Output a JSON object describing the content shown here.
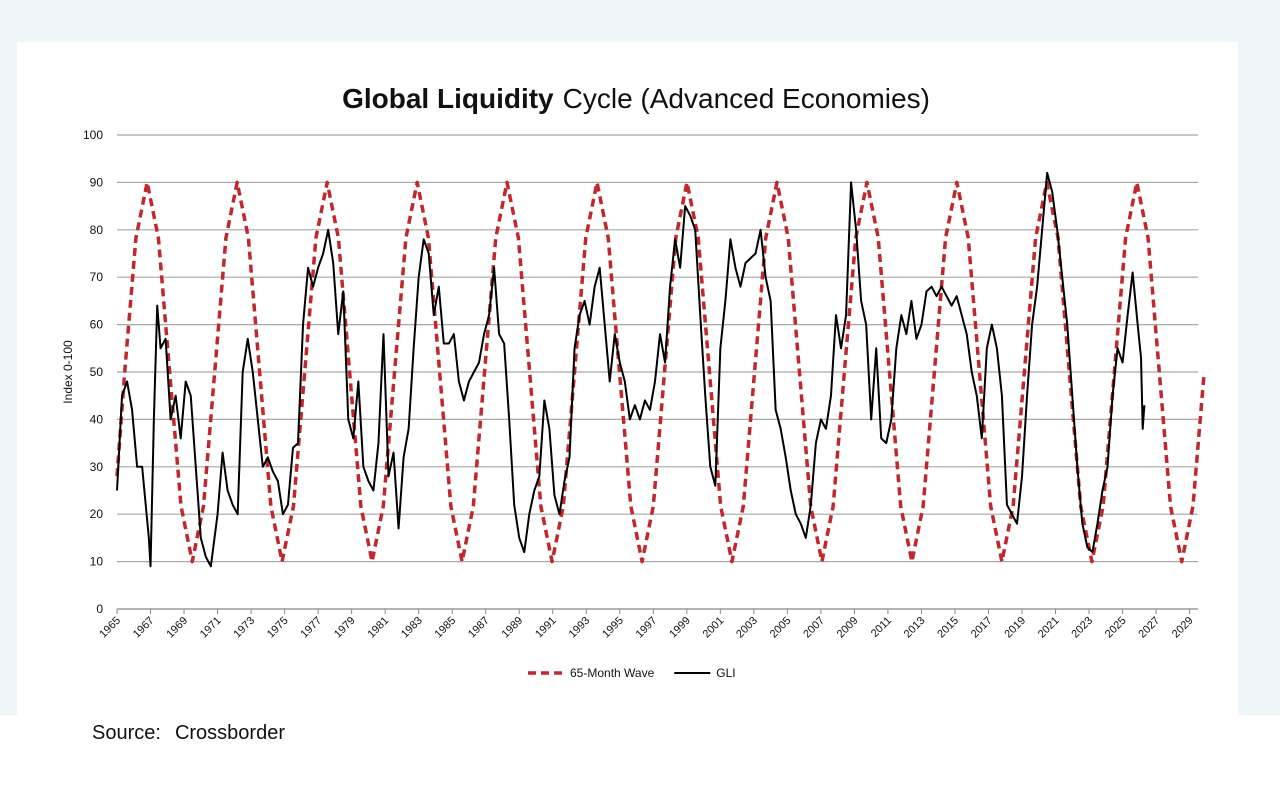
{
  "chart_data": {
    "type": "line",
    "title_bold": "Global Liquidity",
    "title_rest": "Cycle (Advanced Economies)",
    "y_label": "Index 0-100",
    "source_label": "Source:",
    "source": "Crossborder",
    "xlim": [
      1965,
      2029.5
    ],
    "xticks": [
      1965,
      1967,
      1969,
      1971,
      1973,
      1975,
      1977,
      1979,
      1981,
      1983,
      1985,
      1987,
      1989,
      1991,
      1993,
      1995,
      1997,
      1999,
      2001,
      2003,
      2005,
      2007,
      2009,
      2011,
      2013,
      2015,
      2017,
      2019,
      2021,
      2023,
      2025,
      2027,
      2029
    ],
    "ylim": [
      0,
      100
    ],
    "yticks": [
      0,
      10,
      20,
      30,
      40,
      50,
      60,
      70,
      80,
      90,
      100
    ],
    "grid": true,
    "legend": "bottom",
    "series": [
      {
        "name": "65-Month Wave",
        "color": "#c0282d",
        "dashed": true,
        "x": [
          1965.0,
          1965.46,
          1966.13,
          1966.8,
          1967.47,
          1968.14,
          1968.82,
          1969.49,
          1970.16,
          1970.83,
          1971.5,
          1972.17,
          1972.84,
          1973.51,
          1974.18,
          1974.85,
          1975.53,
          1976.2,
          1976.87,
          1977.54,
          1978.21,
          1978.88,
          1979.55,
          1980.22,
          1980.89,
          1981.56,
          1982.24,
          1982.91,
          1983.58,
          1984.25,
          1984.92,
          1985.59,
          1986.26,
          1986.93,
          1987.6,
          1988.27,
          1988.95,
          1989.62,
          1990.29,
          1990.96,
          1991.63,
          1992.3,
          1992.97,
          1993.64,
          1994.31,
          1994.98,
          1995.66,
          1996.33,
          1997.0,
          1997.67,
          1998.34,
          1999.01,
          1999.68,
          2000.35,
          2001.02,
          2001.69,
          2002.37,
          2003.04,
          2003.71,
          2004.38,
          2005.05,
          2005.72,
          2006.39,
          2007.06,
          2007.73,
          2008.4,
          2009.08,
          2009.75,
          2010.42,
          2011.09,
          2011.76,
          2012.43,
          2013.1,
          2013.77,
          2014.44,
          2015.11,
          2015.79,
          2016.46,
          2017.13,
          2017.8,
          2018.47,
          2019.14,
          2019.81,
          2020.48,
          2021.15,
          2021.82,
          2022.5,
          2023.17,
          2023.84,
          2024.51,
          2025.18,
          2025.85,
          2026.52,
          2027.19,
          2027.86,
          2028.53,
          2029.2,
          2029.87
        ],
        "values": [
          28,
          50,
          78.3,
          90,
          78.3,
          50,
          21.7,
          10,
          21.7,
          50,
          78.3,
          90,
          78.3,
          50,
          21.7,
          10,
          21.7,
          50,
          78.3,
          90,
          78.3,
          50,
          21.7,
          10,
          21.7,
          50,
          78.3,
          90,
          78.3,
          50,
          21.7,
          10,
          21.7,
          50,
          78.3,
          90,
          78.3,
          50,
          21.7,
          10,
          21.7,
          50,
          78.3,
          90,
          78.3,
          50,
          21.7,
          10,
          21.7,
          50,
          78.3,
          90,
          78.3,
          50,
          21.7,
          10,
          21.7,
          50,
          78.3,
          90,
          78.3,
          50,
          21.7,
          10,
          21.7,
          50,
          78.3,
          90,
          78.3,
          50,
          21.7,
          10,
          21.7,
          50,
          78.3,
          90,
          78.3,
          50,
          21.7,
          10,
          21.7,
          50,
          78.3,
          90,
          78.3,
          50,
          21.7,
          10,
          21.7,
          50,
          78.3,
          90,
          78.3,
          50,
          21.7,
          10,
          21.7,
          50
        ]
      },
      {
        "name": "GLI",
        "color": "#000000",
        "dashed": false,
        "x": [
          1965.0,
          1965.3,
          1965.6,
          1965.9,
          1966.2,
          1966.5,
          1966.9,
          1967.0,
          1967.2,
          1967.4,
          1967.6,
          1967.9,
          1968.2,
          1968.5,
          1968.8,
          1969.1,
          1969.4,
          1969.7,
          1970.0,
          1970.3,
          1970.6,
          1971.0,
          1971.3,
          1971.6,
          1971.9,
          1972.2,
          1972.5,
          1972.8,
          1973.1,
          1973.4,
          1973.7,
          1974.0,
          1974.3,
          1974.6,
          1974.9,
          1975.2,
          1975.5,
          1975.8,
          1976.1,
          1976.4,
          1976.7,
          1977.0,
          1977.3,
          1977.6,
          1977.9,
          1978.2,
          1978.5,
          1978.8,
          1979.1,
          1979.4,
          1979.7,
          1980.0,
          1980.3,
          1980.6,
          1980.9,
          1981.2,
          1981.5,
          1981.8,
          1982.1,
          1982.4,
          1982.7,
          1983.0,
          1983.3,
          1983.6,
          1983.9,
          1984.2,
          1984.5,
          1984.8,
          1985.1,
          1985.4,
          1985.7,
          1986.0,
          1986.3,
          1986.6,
          1986.9,
          1987.2,
          1987.5,
          1987.8,
          1988.1,
          1988.4,
          1988.7,
          1989.0,
          1989.3,
          1989.6,
          1989.9,
          1990.2,
          1990.5,
          1990.8,
          1991.1,
          1991.4,
          1991.7,
          1992.0,
          1992.3,
          1992.6,
          1992.9,
          1993.2,
          1993.5,
          1993.8,
          1994.1,
          1994.4,
          1994.7,
          1995.0,
          1995.3,
          1995.6,
          1995.9,
          1996.2,
          1996.5,
          1996.8,
          1997.1,
          1997.4,
          1997.7,
          1998.0,
          1998.3,
          1998.6,
          1998.9,
          1999.2,
          1999.5,
          1999.8,
          2000.1,
          2000.4,
          2000.7,
          2001.0,
          2001.3,
          2001.6,
          2001.9,
          2002.2,
          2002.5,
          2002.8,
          2003.1,
          2003.4,
          2003.7,
          2004.0,
          2004.3,
          2004.6,
          2004.9,
          2005.2,
          2005.5,
          2005.8,
          2006.1,
          2006.4,
          2006.7,
          2007.0,
          2007.3,
          2007.6,
          2007.9,
          2008.2,
          2008.5,
          2008.8,
          2009.1,
          2009.4,
          2009.7,
          2010.0,
          2010.3,
          2010.6,
          2010.9,
          2011.2,
          2011.5,
          2011.8,
          2012.1,
          2012.4,
          2012.7,
          2013.0,
          2013.3,
          2013.6,
          2013.9,
          2014.2,
          2014.5,
          2014.8,
          2015.1,
          2015.4,
          2015.7,
          2016.0,
          2016.3,
          2016.6,
          2016.9,
          2017.2,
          2017.5,
          2017.8,
          2018.1,
          2018.4,
          2018.7,
          2019.0,
          2019.3,
          2019.6,
          2019.9,
          2020.2,
          2020.5,
          2020.8,
          2021.1,
          2021.4,
          2021.7,
          2022.0,
          2022.3,
          2022.6,
          2022.9,
          2023.2,
          2023.5,
          2023.8,
          2024.1,
          2024.4,
          2024.7,
          2025.0,
          2025.3,
          2025.6,
          2025.9,
          2026.1,
          2026.2,
          2026.3
        ],
        "values": [
          25,
          45,
          48,
          42,
          30,
          30,
          15,
          9,
          40,
          64,
          55,
          57,
          40,
          45,
          36,
          48,
          45,
          30,
          15,
          11,
          9,
          20,
          33,
          25,
          22,
          20,
          50,
          57,
          50,
          40,
          30,
          32,
          29,
          27,
          20,
          22,
          34,
          35,
          60,
          72,
          68,
          72,
          75,
          80,
          73,
          58,
          67,
          40,
          36,
          48,
          30,
          27,
          25,
          35,
          58,
          28,
          33,
          17,
          32,
          38,
          55,
          70,
          78,
          75,
          62,
          68,
          56,
          56,
          58,
          48,
          44,
          48,
          50,
          52,
          58,
          62,
          72,
          58,
          56,
          40,
          22,
          15,
          12,
          20,
          25,
          28,
          44,
          38,
          24,
          20,
          27,
          32,
          55,
          62,
          65,
          60,
          68,
          72,
          60,
          48,
          58,
          52,
          48,
          40,
          43,
          40,
          44,
          42,
          48,
          58,
          52,
          68,
          78,
          72,
          85,
          83,
          80,
          62,
          45,
          30,
          26,
          55,
          65,
          78,
          72,
          68,
          73,
          74,
          75,
          80,
          70,
          65,
          42,
          38,
          32,
          25,
          20,
          18,
          15,
          22,
          35,
          40,
          38,
          45,
          62,
          55,
          62,
          90,
          80,
          65,
          60,
          40,
          55,
          36,
          35,
          40,
          55,
          62,
          58,
          65,
          57,
          60,
          67,
          68,
          66,
          68,
          66,
          64,
          66,
          62,
          58,
          50,
          45,
          36,
          55,
          60,
          55,
          45,
          22,
          20,
          18,
          28,
          45,
          60,
          68,
          80,
          92,
          88,
          80,
          70,
          60,
          45,
          30,
          18,
          13,
          12,
          18,
          25,
          30,
          45,
          55,
          52,
          62,
          71,
          60,
          53,
          38,
          43
        ]
      }
    ]
  }
}
